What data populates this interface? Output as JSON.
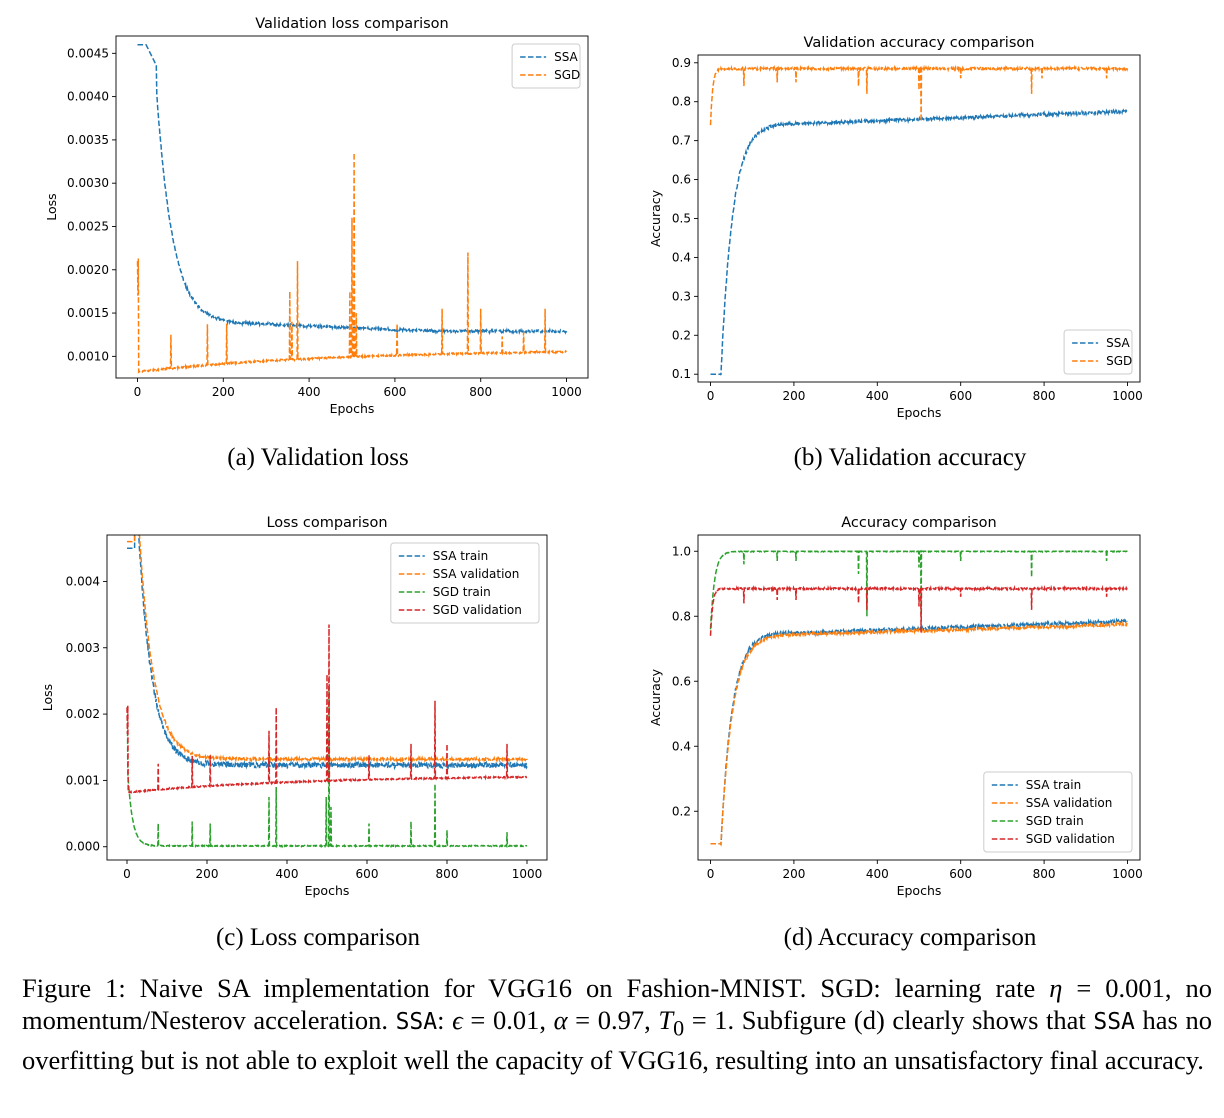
{
  "chart_data": [
    {
      "id": "a",
      "type": "line",
      "title": "Validation loss comparison",
      "xlabel": "Epochs",
      "ylabel": "Loss",
      "xlim": [
        -50,
        1050
      ],
      "ylim": [
        0.00075,
        0.0047
      ],
      "xticks": [
        0,
        200,
        400,
        600,
        800,
        1000
      ],
      "yticks": [
        0.001,
        0.0015,
        0.002,
        0.0025,
        0.003,
        0.0035,
        0.004,
        0.0045
      ],
      "yticklabels": [
        "0.0010",
        "0.0015",
        "0.0020",
        "0.0025",
        "0.0030",
        "0.0035",
        "0.0040",
        "0.0045"
      ],
      "legend_position": "top-right",
      "series": [
        {
          "name": "SSA",
          "color": "#1f77b4",
          "model": "ssa_loss_val"
        },
        {
          "name": "SGD",
          "color": "#ff7f0e",
          "model": "sgd_loss_val",
          "spikes": [
            [
              2,
              0.00213
            ],
            [
              78,
              0.00125
            ],
            [
              163,
              0.00137
            ],
            [
              208,
              0.00138
            ],
            [
              355,
              0.00175
            ],
            [
              360,
              0.0014
            ],
            [
              373,
              0.0021
            ],
            [
              495,
              0.00175
            ],
            [
              500,
              0.0026
            ],
            [
              505,
              0.00335
            ],
            [
              510,
              0.0015
            ],
            [
              605,
              0.00138
            ],
            [
              710,
              0.00155
            ],
            [
              770,
              0.0022
            ],
            [
              800,
              0.00155
            ],
            [
              950,
              0.00155
            ],
            [
              900,
              0.00128
            ],
            [
              850,
              0.00123
            ]
          ]
        }
      ]
    },
    {
      "id": "b",
      "type": "line",
      "title": "Validation accuracy comparison",
      "xlabel": "Epochs",
      "ylabel": "Accuracy",
      "xlim": [
        -30,
        1030
      ],
      "ylim": [
        0.08,
        0.92
      ],
      "xticks": [
        0,
        200,
        400,
        600,
        800,
        1000
      ],
      "yticks": [
        0.1,
        0.2,
        0.3,
        0.4,
        0.5,
        0.6,
        0.7,
        0.8,
        0.9
      ],
      "yticklabels": [
        "0.1",
        "0.2",
        "0.3",
        "0.4",
        "0.5",
        "0.6",
        "0.7",
        "0.8",
        "0.9"
      ],
      "legend_position": "bottom-right",
      "series": [
        {
          "name": "SSA",
          "color": "#1f77b4",
          "model": "ssa_acc_val"
        },
        {
          "name": "SGD",
          "color": "#ff7f0e",
          "model": "sgd_acc_val",
          "spikes": [
            [
              80,
              0.84
            ],
            [
              160,
              0.85
            ],
            [
              205,
              0.85
            ],
            [
              355,
              0.84
            ],
            [
              375,
              0.82
            ],
            [
              500,
              0.83
            ],
            [
              505,
              0.75
            ],
            [
              600,
              0.86
            ],
            [
              770,
              0.82
            ],
            [
              795,
              0.86
            ],
            [
              950,
              0.86
            ]
          ]
        }
      ]
    },
    {
      "id": "c",
      "type": "line",
      "title": "Loss comparison",
      "xlabel": "Epochs",
      "ylabel": "Loss",
      "xlim": [
        -50,
        1050
      ],
      "ylim": [
        -0.0002,
        0.0047
      ],
      "xticks": [
        0,
        200,
        400,
        600,
        800,
        1000
      ],
      "yticks": [
        0.0,
        0.001,
        0.002,
        0.003,
        0.004
      ],
      "yticklabels": [
        "0.000",
        "0.001",
        "0.002",
        "0.003",
        "0.004"
      ],
      "legend_position": "top-right",
      "series": [
        {
          "name": "SSA train",
          "color": "#1f77b4",
          "model": "ssa_loss_train"
        },
        {
          "name": "SSA validation",
          "color": "#ff7f0e",
          "model": "ssa_loss_val_c"
        },
        {
          "name": "SGD train",
          "color": "#2ca02c",
          "model": "sgd_loss_train",
          "spikes": [
            [
              78,
              0.00035
            ],
            [
              163,
              0.00038
            ],
            [
              208,
              0.00035
            ],
            [
              355,
              0.00075
            ],
            [
              373,
              0.0009
            ],
            [
              498,
              0.00075
            ],
            [
              505,
              0.0024
            ],
            [
              510,
              0.0006
            ],
            [
              605,
              0.00035
            ],
            [
              710,
              0.00038
            ],
            [
              770,
              0.00095
            ],
            [
              800,
              0.00025
            ],
            [
              950,
              0.00022
            ]
          ]
        },
        {
          "name": "SGD validation",
          "color": "#d62728",
          "model": "sgd_loss_val_c",
          "spikes": [
            [
              2,
              0.00213
            ],
            [
              78,
              0.00125
            ],
            [
              163,
              0.00137
            ],
            [
              208,
              0.00138
            ],
            [
              355,
              0.00175
            ],
            [
              373,
              0.0021
            ],
            [
              500,
              0.0026
            ],
            [
              505,
              0.00335
            ],
            [
              605,
              0.00138
            ],
            [
              710,
              0.00155
            ],
            [
              770,
              0.0022
            ],
            [
              800,
              0.00155
            ],
            [
              950,
              0.00155
            ]
          ]
        }
      ]
    },
    {
      "id": "d",
      "type": "line",
      "title": "Accuracy comparison",
      "xlabel": "Epochs",
      "ylabel": "Accuracy",
      "xlim": [
        -30,
        1030
      ],
      "ylim": [
        0.05,
        1.05
      ],
      "xticks": [
        0,
        200,
        400,
        600,
        800,
        1000
      ],
      "yticks": [
        0.2,
        0.4,
        0.6,
        0.8,
        1.0
      ],
      "yticklabels": [
        "0.2",
        "0.4",
        "0.6",
        "0.8",
        "1.0"
      ],
      "legend_position": "bottom-right",
      "series": [
        {
          "name": "SSA train",
          "color": "#1f77b4",
          "model": "ssa_acc_train"
        },
        {
          "name": "SSA validation",
          "color": "#ff7f0e",
          "model": "ssa_acc_val"
        },
        {
          "name": "SGD train",
          "color": "#2ca02c",
          "model": "sgd_acc_train",
          "spikes": [
            [
              80,
              0.96
            ],
            [
              160,
              0.97
            ],
            [
              205,
              0.97
            ],
            [
              355,
              0.93
            ],
            [
              375,
              0.8
            ],
            [
              500,
              0.95
            ],
            [
              505,
              0.8
            ],
            [
              600,
              0.97
            ],
            [
              770,
              0.92
            ],
            [
              950,
              0.97
            ]
          ]
        },
        {
          "name": "SGD validation",
          "color": "#d62728",
          "model": "sgd_acc_val",
          "spikes": [
            [
              80,
              0.84
            ],
            [
              160,
              0.85
            ],
            [
              205,
              0.85
            ],
            [
              355,
              0.84
            ],
            [
              375,
              0.82
            ],
            [
              500,
              0.83
            ],
            [
              505,
              0.75
            ],
            [
              600,
              0.86
            ],
            [
              770,
              0.82
            ],
            [
              950,
              0.86
            ]
          ]
        }
      ]
    }
  ],
  "subcaptions": {
    "a": "(a) Validation loss",
    "b": "(b) Validation accuracy",
    "c": "(c) Loss comparison",
    "d": "(d) Accuracy comparison"
  },
  "caption": {
    "part1": "Figure 1: Naive SA implementation for VGG16 on Fashion-MNIST. SGD: learning rate ",
    "eta": "η",
    "part2": " = 0.001, no momentum/Nesterov acceleration. ",
    "ssa1": "SSA",
    "part3": ": ",
    "eps": "ϵ",
    "part4": " = 0.01, ",
    "alpha": "α",
    "part5": " = 0.97, ",
    "t0": "T",
    "t0sub": "0",
    "part6": " = 1. Subfigure (d) clearly shows that ",
    "ssa2": "SSA",
    "part7": " has no overfitting but is not able to exploit well the capacity of VGG16, resulting into an unsatisfactory final accuracy."
  }
}
